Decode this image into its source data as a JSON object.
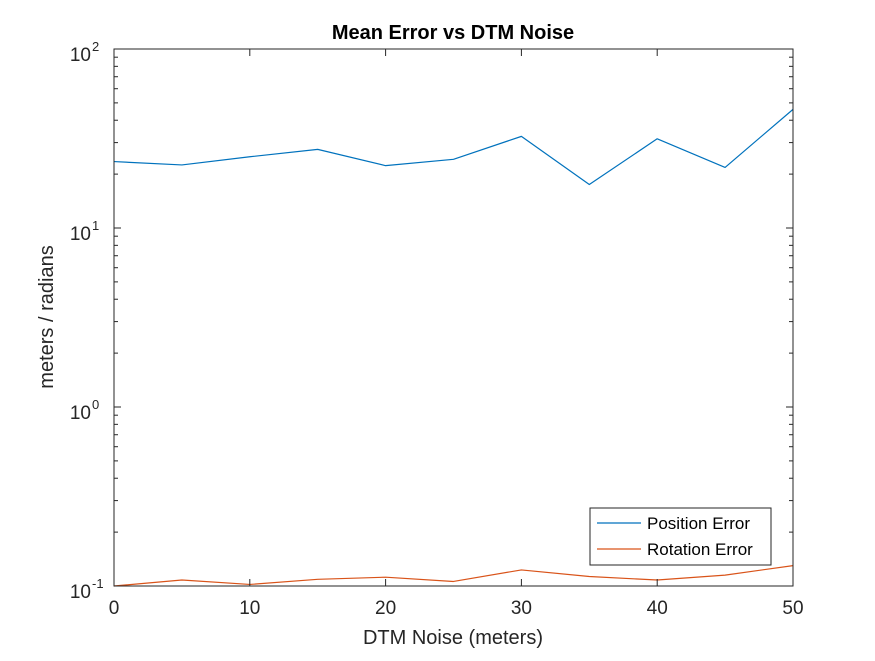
{
  "chart_data": {
    "type": "line",
    "title": "Mean Error vs DTM Noise",
    "xlabel": "DTM Noise (meters)",
    "ylabel": "meters / radians",
    "xlim": [
      0,
      50
    ],
    "ylim": [
      0.1,
      100
    ],
    "yscale": "log",
    "x_ticks": [
      0,
      10,
      20,
      30,
      40,
      50
    ],
    "y_ticks": [
      {
        "value": 0.1,
        "base": "10",
        "exponent": "-1"
      },
      {
        "value": 1,
        "base": "10",
        "exponent": "0"
      },
      {
        "value": 10,
        "base": "10",
        "exponent": "1"
      },
      {
        "value": 100,
        "base": "10",
        "exponent": "2"
      }
    ],
    "grid": false,
    "legend_position": "bottom-right",
    "x": [
      0,
      5,
      10,
      15,
      20,
      25,
      30,
      35,
      40,
      45,
      50
    ],
    "series": [
      {
        "name": "Position Error",
        "color": "#0072BD",
        "values": [
          23.5,
          22.5,
          25,
          27.5,
          22.3,
          24.2,
          32.5,
          17.5,
          31.5,
          21.8,
          46
        ]
      },
      {
        "name": "Rotation Error",
        "color": "#D95319",
        "values": [
          0.1,
          0.108,
          0.102,
          0.109,
          0.112,
          0.106,
          0.123,
          0.113,
          0.108,
          0.115,
          0.13
        ]
      }
    ]
  }
}
